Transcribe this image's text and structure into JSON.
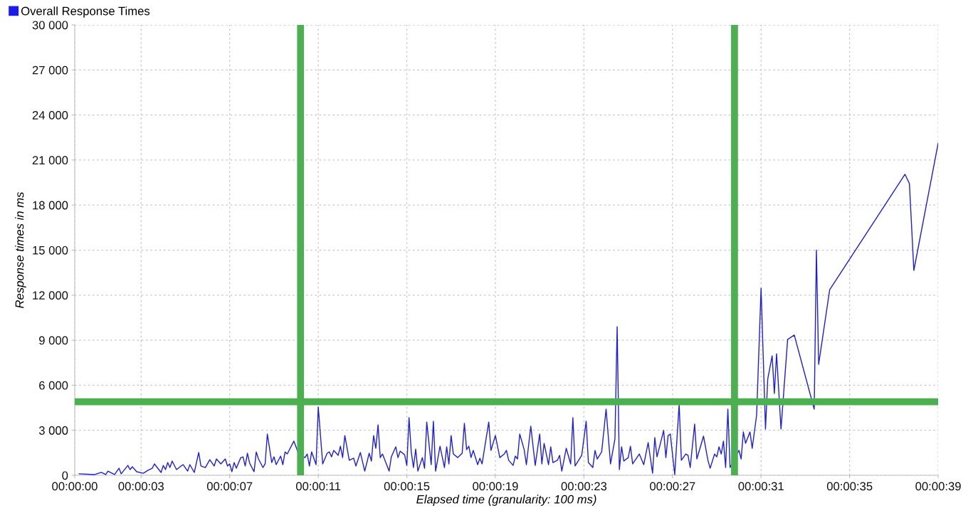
{
  "chart_data": {
    "type": "line",
    "xlabel": "Elapsed time (granularity: 100 ms)",
    "ylabel": "Response times in ms",
    "series": [
      {
        "name": "Overall Response Times",
        "color": "#1c1ce8",
        "x": [
          0.2,
          0.9,
          1.2,
          1.4,
          1.5,
          1.8,
          2.0,
          2.1,
          2.4,
          2.5,
          2.6,
          2.8,
          3.1,
          3.3,
          3.5,
          3.6,
          3.9,
          4.0,
          4.1,
          4.2,
          4.3,
          4.4,
          4.6,
          4.8,
          4.9,
          5.1,
          5.2,
          5.4,
          5.6,
          5.7,
          5.9,
          6.1,
          6.3,
          6.4,
          6.6,
          6.8,
          6.9,
          7.0,
          7.1,
          7.2,
          7.3,
          7.5,
          7.6,
          7.7,
          7.8,
          7.9,
          8.1,
          8.2,
          8.3,
          8.5,
          8.6,
          8.7,
          8.9,
          9.0,
          9.1,
          9.3,
          9.4,
          9.5,
          9.6,
          9.9,
          10.1,
          10.4,
          10.5,
          10.6,
          10.7,
          10.9,
          11.0,
          11.2,
          11.4,
          11.5,
          11.6,
          11.7,
          11.9,
          12.0,
          12.1,
          12.2,
          12.4,
          12.6,
          12.7,
          12.9,
          13.1,
          13.3,
          13.4,
          13.5,
          13.6,
          13.7,
          13.8,
          13.9,
          14.2,
          14.3,
          14.5,
          14.6,
          14.7,
          14.9,
          15.0,
          15.1,
          15.2,
          15.3,
          15.4,
          15.5,
          15.7,
          15.8,
          15.9,
          16.1,
          16.2,
          16.3,
          16.5,
          16.7,
          16.8,
          16.9,
          17.0,
          17.1,
          17.3,
          17.5,
          17.6,
          17.7,
          17.8,
          17.9,
          18.0,
          18.2,
          18.3,
          18.4,
          18.7,
          18.8,
          19.0,
          19.2,
          19.4,
          19.5,
          19.6,
          19.8,
          19.9,
          20.0,
          20.1,
          20.3,
          20.4,
          20.6,
          20.8,
          21.0,
          21.1,
          21.2,
          21.4,
          21.5,
          21.6,
          21.8,
          21.9,
          22.0,
          22.2,
          22.4,
          22.5,
          22.6,
          22.9,
          23.1,
          23.2,
          23.4,
          23.5,
          23.6,
          23.8,
          24.0,
          24.2,
          24.4,
          24.5,
          24.6,
          24.7,
          24.8,
          25.0,
          25.1,
          25.2,
          25.5,
          25.7,
          25.9,
          26.1,
          26.2,
          26.3,
          26.6,
          26.7,
          26.8,
          26.9,
          27.1,
          27.3,
          27.4,
          27.6,
          27.7,
          27.8,
          28.0,
          28.1,
          28.4,
          28.6,
          28.7,
          28.9,
          29.0,
          29.1,
          29.2,
          29.3,
          29.4,
          29.5,
          29.6,
          30.0,
          30.1,
          30.2,
          30.3,
          30.5,
          30.6,
          30.8,
          31.0,
          31.2,
          31.3,
          31.5,
          31.6,
          31.7,
          31.9,
          32.2,
          32.5,
          33.4,
          33.5,
          33.6,
          34.1,
          37.5,
          37.7,
          37.9,
          39.0
        ],
        "values": [
          100,
          50,
          200,
          50,
          280,
          50,
          470,
          100,
          660,
          380,
          570,
          240,
          140,
          330,
          470,
          760,
          190,
          660,
          380,
          850,
          520,
          950,
          380,
          620,
          710,
          280,
          710,
          190,
          1520,
          620,
          520,
          1040,
          620,
          1090,
          760,
          1090,
          620,
          760,
          240,
          850,
          470,
          1180,
          1230,
          620,
          1470,
          810,
          240,
          1560,
          1090,
          520,
          760,
          2750,
          850,
          1230,
          710,
          1280,
          710,
          1560,
          1420,
          2280,
          1470,
          1180,
          1420,
          620,
          1560,
          710,
          4550,
          760,
          1470,
          1560,
          1230,
          1660,
          1330,
          1940,
          1180,
          2650,
          1000,
          1140,
          620,
          1520,
          280,
          1470,
          950,
          2650,
          1800,
          3360,
          1180,
          1420,
          280,
          1230,
          1900,
          1180,
          1610,
          1370,
          660,
          3840,
          1560,
          520,
          1750,
          280,
          1180,
          470,
          3550,
          710,
          3600,
          280,
          1940,
          520,
          1900,
          760,
          2650,
          1420,
          1180,
          1470,
          3460,
          1710,
          1940,
          1180,
          1660,
          710,
          1140,
          760,
          3550,
          1660,
          2650,
          1180,
          1420,
          1660,
          1000,
          660,
          1280,
          1090,
          2750,
          1710,
          710,
          3270,
          660,
          2750,
          760,
          2130,
          710,
          1900,
          850,
          1000,
          1330,
          280,
          1800,
          760,
          3840,
          620,
          1330,
          3600,
          850,
          520,
          1660,
          1090,
          1560,
          4410,
          760,
          2420,
          9900,
          380,
          1900,
          950,
          1180,
          1940,
          760,
          1420,
          710,
          2180,
          140,
          2510,
          1230,
          2990,
          1180,
          2650,
          2750,
          50,
          4740,
          1000,
          1420,
          1330,
          520,
          3410,
          1090,
          2610,
          1000,
          470,
          1420,
          1230,
          1900,
          1420,
          2280,
          520,
          4410,
          520,
          1660,
          1090,
          2890,
          2130,
          2890,
          1800,
          4030,
          12460,
          3080,
          6400,
          7960,
          5450,
          8100,
          3080,
          9050,
          9340,
          4410,
          15000,
          7390,
          12370,
          20050,
          19430,
          13650,
          22130
        ]
      }
    ],
    "xlim": [
      0,
      39
    ],
    "xticks": [
      {
        "value": 0,
        "label": "00:00:00"
      },
      {
        "value": 3,
        "label": "00:00:03"
      },
      {
        "value": 7,
        "label": "00:00:07"
      },
      {
        "value": 11,
        "label": "00:00:11"
      },
      {
        "value": 15,
        "label": "00:00:15"
      },
      {
        "value": 19,
        "label": "00:00:19"
      },
      {
        "value": 23,
        "label": "00:00:23"
      },
      {
        "value": 27,
        "label": "00:00:27"
      },
      {
        "value": 31,
        "label": "00:00:31"
      },
      {
        "value": 35,
        "label": "00:00:35"
      },
      {
        "value": 39,
        "label": "00:00:39"
      }
    ],
    "ylim": [
      0,
      30000
    ],
    "yticks": [
      0,
      {
        "value": 3000,
        "label": "3 000"
      },
      {
        "value": 6000,
        "label": "6 000"
      },
      {
        "value": 9000,
        "label": "9 000"
      },
      {
        "value": 12000,
        "label": "12 000"
      },
      {
        "value": 15000,
        "label": "15 000"
      },
      {
        "value": 18000,
        "label": "18 000"
      },
      {
        "value": 21000,
        "label": "21 000"
      },
      {
        "value": 24000,
        "label": "24 000"
      },
      {
        "value": 27000,
        "label": "27 000"
      },
      {
        "value": 30000,
        "label": "30 000"
      }
    ],
    "ref_lines": [
      {
        "axis": "y",
        "value": 4900,
        "color": "#4caf50"
      },
      {
        "axis": "x",
        "value": 10.2,
        "color": "#4caf50"
      },
      {
        "axis": "x",
        "value": 29.8,
        "color": "#4caf50"
      }
    ],
    "grid": true,
    "legend": "top left",
    "marker": "none",
    "line_style": "solid"
  }
}
